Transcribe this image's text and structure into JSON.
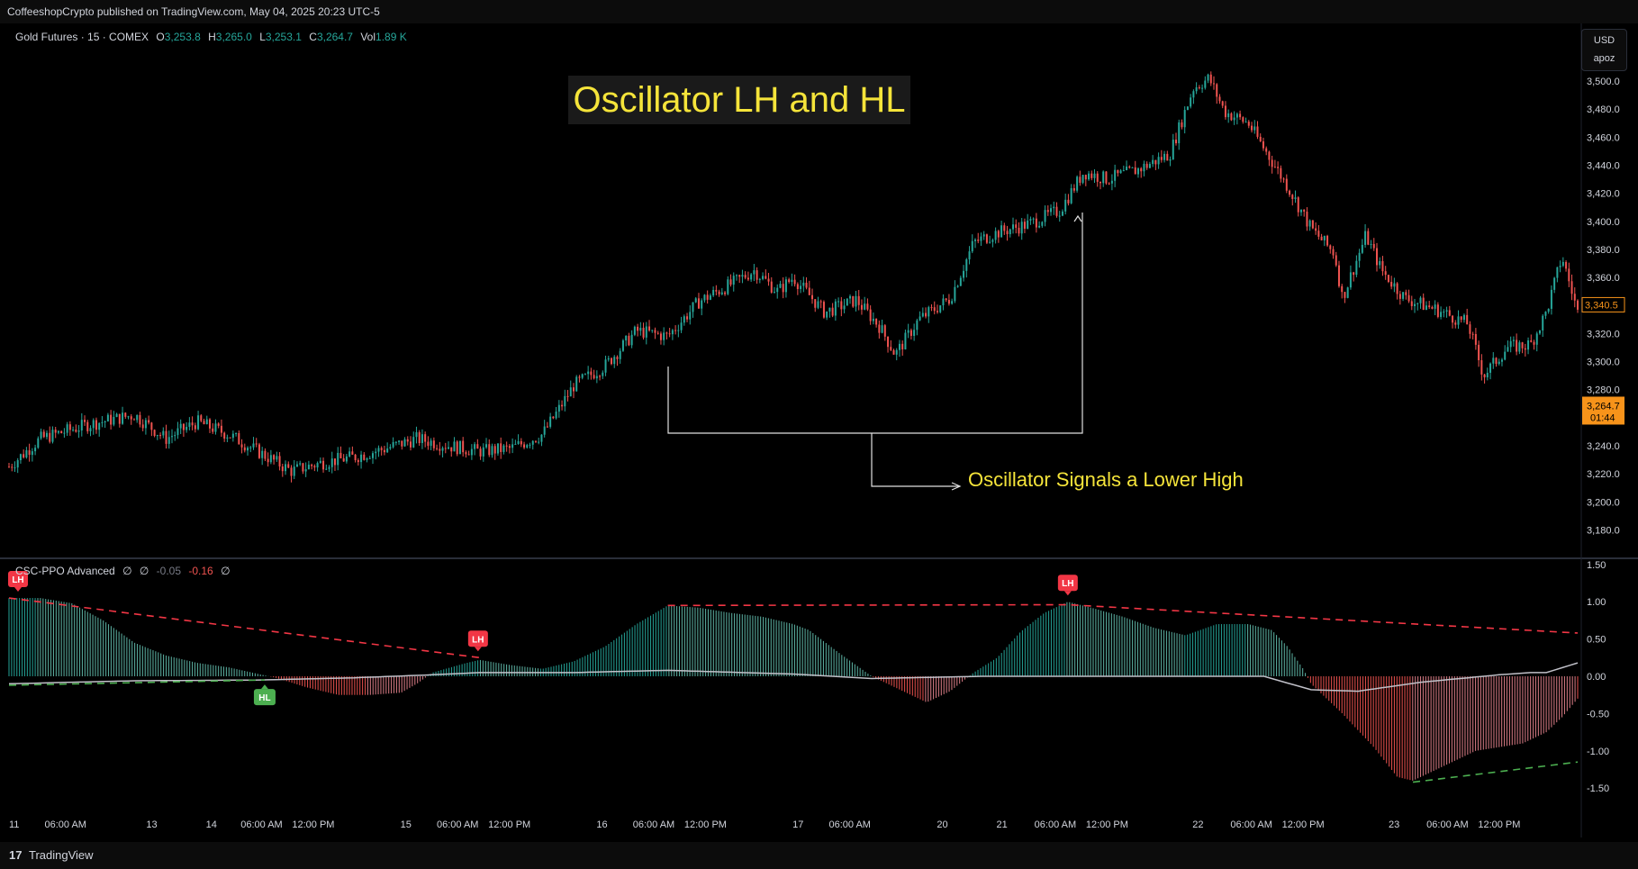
{
  "header": {
    "published": "CoffeeshopCrypto published on TradingView.com, May 04, 2025 20:23 UTC-5"
  },
  "legend": {
    "symbol": "Gold Futures · 15 · COMEX",
    "o_label": "O",
    "o_value": "3,253.8",
    "h_label": "H",
    "h_value": "3,265.0",
    "l_label": "L",
    "l_value": "3,253.1",
    "c_label": "C",
    "c_value": "3,264.7",
    "vol_label": "Vol",
    "vol_value": "1.89 K"
  },
  "currency": {
    "code": "USD",
    "sub": "apoz"
  },
  "title": "Oscillator LH and HL",
  "annotation": "Oscillator Signals a Lower High",
  "indicator": {
    "name": "CSC-PPO Advanced",
    "v1": "∅",
    "v2": "∅",
    "v3": "-0.05",
    "v4": "-0.16",
    "v5": "∅"
  },
  "price_badges": {
    "high": "3,340.5",
    "last": "3,264.7",
    "countdown": "01:44"
  },
  "footer": {
    "logo": "17",
    "brand": "TradingView"
  },
  "colors": {
    "up": "#26a69a",
    "down": "#ef5350",
    "hist_up": "#5fb8a8",
    "hist_down": "#e0808a",
    "lh": "#f23645",
    "hl": "#4caf50",
    "yellow": "#f5e43a",
    "signal": "#c0c0c8"
  },
  "chart_data": [
    {
      "type": "candlestick",
      "title": "Gold Futures · 15 · COMEX",
      "ylim": [
        3170,
        3510
      ],
      "y_ticks": [
        "3,180.0",
        "3,200.0",
        "3,220.0",
        "3,240.0",
        "3,260.0",
        "3,280.0",
        "3,300.0",
        "3,320.0",
        "3,340.0",
        "3,360.0",
        "3,380.0",
        "3,400.0",
        "3,420.0",
        "3,440.0",
        "3,460.0",
        "3,480.0",
        "3,500.0"
      ],
      "y_tick_values": [
        3180,
        3200,
        3220,
        3240,
        3260,
        3280,
        3300,
        3320,
        3340,
        3360,
        3380,
        3400,
        3420,
        3440,
        3460,
        3480,
        3500
      ],
      "x_ticks": [
        "11",
        "06:00 AM",
        "13",
        "14",
        "06:00 AM",
        "12:00 PM",
        "15",
        "06:00 AM",
        "12:00 PM",
        "16",
        "06:00 AM",
        "12:00 PM",
        "17",
        "06:00 AM",
        "20",
        "21",
        "06:00 AM",
        "12:00 PM",
        "22",
        "06:00 AM",
        "12:00 PM",
        "23",
        "06:00 AM",
        "12:00 PM"
      ],
      "x_tick_pos": [
        0.0,
        0.036,
        0.091,
        0.129,
        0.161,
        0.194,
        0.253,
        0.286,
        0.319,
        0.378,
        0.411,
        0.444,
        0.503,
        0.536,
        0.595,
        0.633,
        0.667,
        0.7,
        0.758,
        0.792,
        0.825,
        0.883,
        0.917,
        0.95
      ],
      "path_points": [
        [
          0,
          3225
        ],
        [
          0.02,
          3245
        ],
        [
          0.05,
          3255
        ],
        [
          0.08,
          3262
        ],
        [
          0.1,
          3245
        ],
        [
          0.12,
          3257
        ],
        [
          0.14,
          3248
        ],
        [
          0.16,
          3235
        ],
        [
          0.18,
          3222
        ],
        [
          0.2,
          3228
        ],
        [
          0.22,
          3232
        ],
        [
          0.24,
          3238
        ],
        [
          0.26,
          3245
        ],
        [
          0.28,
          3240
        ],
        [
          0.3,
          3236
        ],
        [
          0.32,
          3238
        ],
        [
          0.34,
          3248
        ],
        [
          0.35,
          3265
        ],
        [
          0.36,
          3283
        ],
        [
          0.38,
          3297
        ],
        [
          0.4,
          3322
        ],
        [
          0.42,
          3318
        ],
        [
          0.44,
          3343
        ],
        [
          0.46,
          3355
        ],
        [
          0.475,
          3365
        ],
        [
          0.49,
          3350
        ],
        [
          0.5,
          3360
        ],
        [
          0.52,
          3335
        ],
        [
          0.54,
          3344
        ],
        [
          0.555,
          3325
        ],
        [
          0.565,
          3305
        ],
        [
          0.58,
          3330
        ],
        [
          0.6,
          3345
        ],
        [
          0.615,
          3385
        ],
        [
          0.63,
          3392
        ],
        [
          0.65,
          3398
        ],
        [
          0.67,
          3408
        ],
        [
          0.685,
          3435
        ],
        [
          0.7,
          3430
        ],
        [
          0.72,
          3437
        ],
        [
          0.74,
          3448
        ],
        [
          0.755,
          3495
        ],
        [
          0.765,
          3502
        ],
        [
          0.775,
          3478
        ],
        [
          0.79,
          3470
        ],
        [
          0.8,
          3452
        ],
        [
          0.815,
          3425
        ],
        [
          0.83,
          3395
        ],
        [
          0.845,
          3377
        ],
        [
          0.85,
          3345
        ],
        [
          0.865,
          3390
        ],
        [
          0.875,
          3365
        ],
        [
          0.89,
          3345
        ],
        [
          0.91,
          3337
        ],
        [
          0.93,
          3327
        ],
        [
          0.94,
          3290
        ],
        [
          0.955,
          3310
        ],
        [
          0.97,
          3312
        ],
        [
          0.98,
          3335
        ],
        [
          0.99,
          3375
        ],
        [
          1.0,
          3335
        ]
      ],
      "annotations": [
        "Oscillator LH and HL",
        "Oscillator Signals a Lower High"
      ]
    },
    {
      "type": "bar",
      "title": "CSC-PPO Advanced",
      "ylim": [
        -1.6,
        1.6
      ],
      "y_ticks": [
        "1.50",
        "1.00",
        "0.50",
        "0.00",
        "-0.50",
        "-1.00",
        "-1.50"
      ],
      "y_tick_values": [
        1.5,
        1.0,
        0.5,
        0.0,
        -0.5,
        -1.0,
        -1.5
      ],
      "hist_points": [
        [
          0,
          1.05
        ],
        [
          0.02,
          1.05
        ],
        [
          0.04,
          0.98
        ],
        [
          0.06,
          0.75
        ],
        [
          0.08,
          0.45
        ],
        [
          0.1,
          0.28
        ],
        [
          0.12,
          0.18
        ],
        [
          0.14,
          0.12
        ],
        [
          0.155,
          0.05
        ],
        [
          0.17,
          -0.02
        ],
        [
          0.19,
          -0.15
        ],
        [
          0.21,
          -0.25
        ],
        [
          0.23,
          -0.25
        ],
        [
          0.25,
          -0.22
        ],
        [
          0.26,
          -0.1
        ],
        [
          0.27,
          0.05
        ],
        [
          0.29,
          0.17
        ],
        [
          0.3,
          0.22
        ],
        [
          0.32,
          0.15
        ],
        [
          0.34,
          0.1
        ],
        [
          0.36,
          0.2
        ],
        [
          0.38,
          0.4
        ],
        [
          0.4,
          0.7
        ],
        [
          0.42,
          0.95
        ],
        [
          0.44,
          0.92
        ],
        [
          0.46,
          0.85
        ],
        [
          0.48,
          0.8
        ],
        [
          0.5,
          0.7
        ],
        [
          0.51,
          0.62
        ],
        [
          0.53,
          0.3
        ],
        [
          0.55,
          0.0
        ],
        [
          0.57,
          -0.2
        ],
        [
          0.585,
          -0.35
        ],
        [
          0.6,
          -0.2
        ],
        [
          0.615,
          0.05
        ],
        [
          0.63,
          0.25
        ],
        [
          0.645,
          0.6
        ],
        [
          0.66,
          0.85
        ],
        [
          0.675,
          1.0
        ],
        [
          0.69,
          0.92
        ],
        [
          0.71,
          0.8
        ],
        [
          0.73,
          0.65
        ],
        [
          0.75,
          0.55
        ],
        [
          0.77,
          0.7
        ],
        [
          0.79,
          0.7
        ],
        [
          0.805,
          0.62
        ],
        [
          0.815,
          0.4
        ],
        [
          0.825,
          0.1
        ],
        [
          0.83,
          -0.1
        ],
        [
          0.85,
          -0.5
        ],
        [
          0.87,
          -0.95
        ],
        [
          0.885,
          -1.35
        ],
        [
          0.895,
          -1.4
        ],
        [
          0.905,
          -1.3
        ],
        [
          0.92,
          -1.15
        ],
        [
          0.935,
          -1.0
        ],
        [
          0.95,
          -0.95
        ],
        [
          0.965,
          -0.9
        ],
        [
          0.98,
          -0.75
        ],
        [
          0.99,
          -0.55
        ],
        [
          1.0,
          -0.3
        ]
      ],
      "signal_points": [
        [
          0,
          -0.1
        ],
        [
          0.08,
          -0.06
        ],
        [
          0.16,
          -0.05
        ],
        [
          0.22,
          -0.02
        ],
        [
          0.27,
          0.02
        ],
        [
          0.3,
          0.05
        ],
        [
          0.36,
          0.05
        ],
        [
          0.42,
          0.08
        ],
        [
          0.5,
          0.03
        ],
        [
          0.55,
          -0.03
        ],
        [
          0.62,
          0.0
        ],
        [
          0.7,
          0.0
        ],
        [
          0.8,
          0.0
        ],
        [
          0.83,
          -0.18
        ],
        [
          0.86,
          -0.2
        ],
        [
          0.9,
          -0.08
        ],
        [
          0.95,
          0.02
        ],
        [
          0.97,
          0.05
        ],
        [
          0.98,
          0.05
        ],
        [
          1.0,
          0.18
        ]
      ],
      "lh_line": [
        [
          0,
          1.05
        ],
        [
          0.3,
          0.25
        ]
      ],
      "lh_line2": [
        [
          0.42,
          0.95
        ],
        [
          0.675,
          0.96
        ],
        [
          1.0,
          0.58
        ]
      ],
      "hl_line": [
        [
          0,
          -0.12
        ],
        [
          0.163,
          -0.05
        ]
      ],
      "hl_line2": [
        [
          0.895,
          -1.42
        ],
        [
          1.0,
          -1.15
        ]
      ],
      "markers": [
        {
          "label": "LH",
          "x": 0.004,
          "y": 1.05
        },
        {
          "label": "LH",
          "x": 0.299,
          "y": 0.25
        },
        {
          "label": "HL",
          "x": 0.163,
          "y": -0.05
        },
        {
          "label": "LH",
          "x": 0.675,
          "y": 1.0
        }
      ]
    }
  ]
}
